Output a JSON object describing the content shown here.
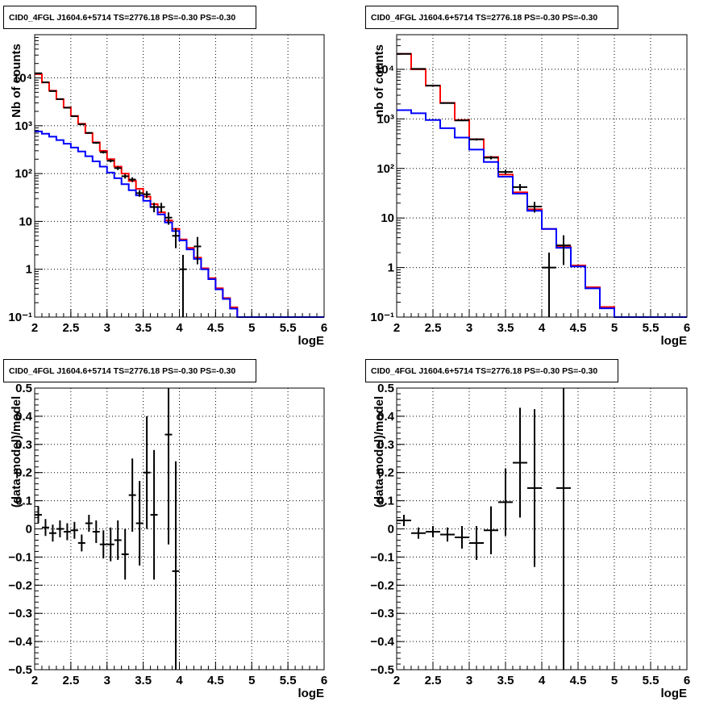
{
  "colors": {
    "data": "#000000",
    "total_model": "#ff0000",
    "background_model": "#0000ff",
    "grid": "#000000",
    "background": "#ffffff"
  },
  "chart_data": [
    {
      "type": "line",
      "title": "CID0_4FGL J1604.6+5714 TS=2776.18 PS=-0.30 PS=-0.30",
      "xlabel": "logE",
      "ylabel": "Nb of counts",
      "xlim": [
        2,
        6
      ],
      "ylim": [
        0.1,
        80000
      ],
      "yscale": "log",
      "grid": true,
      "xticks": [
        "2",
        "2.5",
        "3",
        "3.5",
        "4",
        "4.5",
        "5",
        "5.5",
        "6"
      ],
      "yticks": [
        {
          "value": 0.1,
          "label": "10⁻¹"
        },
        {
          "value": 1,
          "label": "1"
        },
        {
          "value": 10,
          "label": "10"
        },
        {
          "value": 100,
          "label": "10²"
        },
        {
          "value": 1000,
          "label": "10³"
        },
        {
          "value": 10000,
          "label": "10⁴"
        }
      ],
      "series": [
        {
          "kind": "step",
          "role": "total_model",
          "edges": [
            2.0,
            2.1,
            2.2,
            2.3,
            2.4,
            2.5,
            2.6,
            2.7,
            2.8,
            2.9,
            3.0,
            3.1,
            3.2,
            3.3,
            3.4,
            3.5,
            3.6,
            3.7,
            3.8,
            3.9,
            4.0,
            4.1,
            4.2,
            4.3,
            4.4,
            4.5,
            4.6,
            4.7,
            4.8,
            4.9,
            5.0,
            6.0
          ],
          "values": [
            12000,
            8000,
            5400,
            3600,
            2400,
            1600,
            1100,
            700,
            450,
            300,
            200,
            140,
            100,
            70,
            48,
            33,
            23,
            15.5,
            10.5,
            7,
            4.2,
            2.8,
            1.75,
            1.05,
            0.65,
            0.4,
            0.25,
            0.16,
            0.1,
            0.1,
            0.1
          ]
        },
        {
          "kind": "step",
          "role": "background_model",
          "edges": [
            2.0,
            2.1,
            2.2,
            2.3,
            2.4,
            2.5,
            2.6,
            2.7,
            2.8,
            2.9,
            3.0,
            3.1,
            3.2,
            3.3,
            3.4,
            3.5,
            3.6,
            3.7,
            3.8,
            3.9,
            4.0,
            4.1,
            4.2,
            4.3,
            4.4,
            4.5,
            4.6,
            4.7,
            4.8,
            4.9,
            5.0,
            6.0
          ],
          "values": [
            760,
            680,
            590,
            500,
            420,
            350,
            290,
            230,
            180,
            140,
            105,
            80,
            60,
            45,
            35,
            27,
            20,
            14,
            9.5,
            6.3,
            4,
            2.6,
            1.65,
            1.0,
            0.62,
            0.38,
            0.24,
            0.15,
            0.1,
            0.1,
            0.1
          ]
        },
        {
          "kind": "points",
          "role": "data",
          "x": [
            2.05,
            2.15,
            2.25,
            2.35,
            2.45,
            2.55,
            2.65,
            2.75,
            2.85,
            2.95,
            3.05,
            3.15,
            3.25,
            3.35,
            3.45,
            3.55,
            3.65,
            3.75,
            3.85,
            3.95,
            4.05,
            4.25
          ],
          "y": [
            12500,
            8100,
            5300,
            3600,
            2380,
            1580,
            1070,
            710,
            440,
            280,
            185,
            130,
            88,
            75,
            39,
            37,
            20,
            20,
            12,
            5,
            1,
            3
          ],
          "xerr": 0.05
        }
      ]
    },
    {
      "type": "line",
      "title": "CID0_4FGL J1604.6+5714 TS=2776.18 PS=-0.30 PS=-0.30",
      "xlabel": "logE",
      "ylabel": "nb of counts",
      "xlim": [
        2,
        6
      ],
      "ylim": [
        0.1,
        50000
      ],
      "yscale": "log",
      "grid": true,
      "xticks": [
        "2",
        "2.5",
        "3",
        "3.5",
        "4",
        "4.5",
        "5",
        "5.5",
        "6"
      ],
      "yticks": [
        {
          "value": 0.1,
          "label": "10⁻¹"
        },
        {
          "value": 1,
          "label": "1"
        },
        {
          "value": 10,
          "label": "10"
        },
        {
          "value": 100,
          "label": "10²"
        },
        {
          "value": 1000,
          "label": "10³"
        },
        {
          "value": 10000,
          "label": "10⁴"
        }
      ],
      "series": [
        {
          "kind": "step",
          "role": "total_model",
          "edges": [
            2.0,
            2.2,
            2.4,
            2.6,
            2.8,
            3.0,
            3.2,
            3.4,
            3.6,
            3.8,
            4.0,
            4.2,
            4.4,
            4.6,
            4.8,
            5.0,
            6.0
          ],
          "values": [
            20500,
            10000,
            4700,
            2100,
            950,
            390,
            170,
            75,
            33,
            15,
            6,
            2.6,
            1.1,
            0.4,
            0.16,
            0.1
          ]
        },
        {
          "kind": "step",
          "role": "background_model",
          "edges": [
            2.0,
            2.2,
            2.4,
            2.6,
            2.8,
            3.0,
            3.2,
            3.4,
            3.6,
            3.8,
            4.0,
            4.2,
            4.4,
            4.6,
            4.8,
            5.0,
            6.0
          ],
          "values": [
            1500,
            1300,
            950,
            650,
            420,
            240,
            135,
            68,
            31,
            14,
            6,
            2.5,
            1.05,
            0.38,
            0.15,
            0.1
          ]
        },
        {
          "kind": "points",
          "role": "data",
          "x": [
            2.1,
            2.3,
            2.5,
            2.7,
            2.9,
            3.1,
            3.3,
            3.5,
            3.7,
            3.9,
            4.1,
            4.3
          ],
          "y": [
            20500,
            10200,
            4700,
            2080,
            930,
            385,
            165,
            85,
            42,
            17,
            1,
            2.8
          ],
          "xerr": 0.1
        }
      ]
    },
    {
      "type": "scatter",
      "title": "CID0_4FGL J1604.6+5714 TS=2776.18 PS=-0.30 PS=-0.30",
      "xlabel": "logE",
      "ylabel": "(data-model)/model",
      "xlim": [
        2,
        6
      ],
      "ylim": [
        -0.5,
        0.5
      ],
      "grid": true,
      "xticks": [
        "2",
        "2.5",
        "3",
        "3.5",
        "4",
        "4.5",
        "5",
        "5.5",
        "6"
      ],
      "yticks": [
        "-0.5",
        "-0.4",
        "-0.3",
        "-0.2",
        "-0.1",
        "0",
        "0.1",
        "0.2",
        "0.3",
        "0.4",
        "0.5"
      ],
      "series": [
        {
          "kind": "errorbars",
          "role": "data",
          "xerr": 0.05,
          "points": [
            {
              "x": 2.05,
              "y": 0.05,
              "err": 0.03
            },
            {
              "x": 2.15,
              "y": 0.005,
              "err": 0.03
            },
            {
              "x": 2.25,
              "y": -0.015,
              "err": 0.03
            },
            {
              "x": 2.35,
              "y": 0.0,
              "err": 0.03
            },
            {
              "x": 2.45,
              "y": -0.01,
              "err": 0.03
            },
            {
              "x": 2.55,
              "y": -0.005,
              "err": 0.03
            },
            {
              "x": 2.65,
              "y": -0.05,
              "err": 0.03
            },
            {
              "x": 2.75,
              "y": 0.02,
              "err": 0.03
            },
            {
              "x": 2.85,
              "y": -0.01,
              "err": 0.04
            },
            {
              "x": 2.95,
              "y": -0.055,
              "err": 0.05
            },
            {
              "x": 3.05,
              "y": -0.055,
              "err": 0.06
            },
            {
              "x": 3.15,
              "y": -0.04,
              "err": 0.07
            },
            {
              "x": 3.25,
              "y": -0.09,
              "err": 0.09
            },
            {
              "x": 3.35,
              "y": 0.12,
              "err": 0.13
            },
            {
              "x": 3.45,
              "y": 0.02,
              "err": 0.15
            },
            {
              "x": 3.55,
              "y": 0.2,
              "err": 0.2
            },
            {
              "x": 3.65,
              "y": 0.05,
              "err": 0.23
            },
            {
              "x": 3.85,
              "y": 0.335,
              "err": 0.39
            },
            {
              "x": 3.95,
              "y": -0.15,
              "err": 0.39
            }
          ]
        }
      ]
    },
    {
      "type": "scatter",
      "title": "CID0_4FGL J1604.6+5714 TS=2776.18 PS=-0.30 PS=-0.30",
      "xlabel": "logE",
      "ylabel": "(data-model)/model",
      "xlim": [
        2,
        6
      ],
      "ylim": [
        -0.5,
        0.5
      ],
      "grid": true,
      "xticks": [
        "2",
        "2.5",
        "3",
        "3.5",
        "4",
        "4.5",
        "5",
        "5.5",
        "6"
      ],
      "yticks": [
        "-0.5",
        "-0.4",
        "-0.3",
        "-0.2",
        "-0.1",
        "0",
        "0.1",
        "0.2",
        "0.3",
        "0.4",
        "0.5"
      ],
      "series": [
        {
          "kind": "errorbars",
          "role": "data",
          "xerr": 0.1,
          "points": [
            {
              "x": 2.1,
              "y": 0.03,
              "err": 0.02
            },
            {
              "x": 2.3,
              "y": -0.015,
              "err": 0.02
            },
            {
              "x": 2.5,
              "y": -0.01,
              "err": 0.02
            },
            {
              "x": 2.7,
              "y": -0.02,
              "err": 0.025
            },
            {
              "x": 2.9,
              "y": -0.03,
              "err": 0.04
            },
            {
              "x": 3.1,
              "y": -0.05,
              "err": 0.06
            },
            {
              "x": 3.3,
              "y": -0.005,
              "err": 0.085
            },
            {
              "x": 3.5,
              "y": 0.095,
              "err": 0.12
            },
            {
              "x": 3.7,
              "y": 0.235,
              "err": 0.195
            },
            {
              "x": 3.9,
              "y": 0.145,
              "err": 0.28
            },
            {
              "x": 4.3,
              "y": 0.145,
              "err": 0.7
            }
          ]
        }
      ]
    }
  ]
}
